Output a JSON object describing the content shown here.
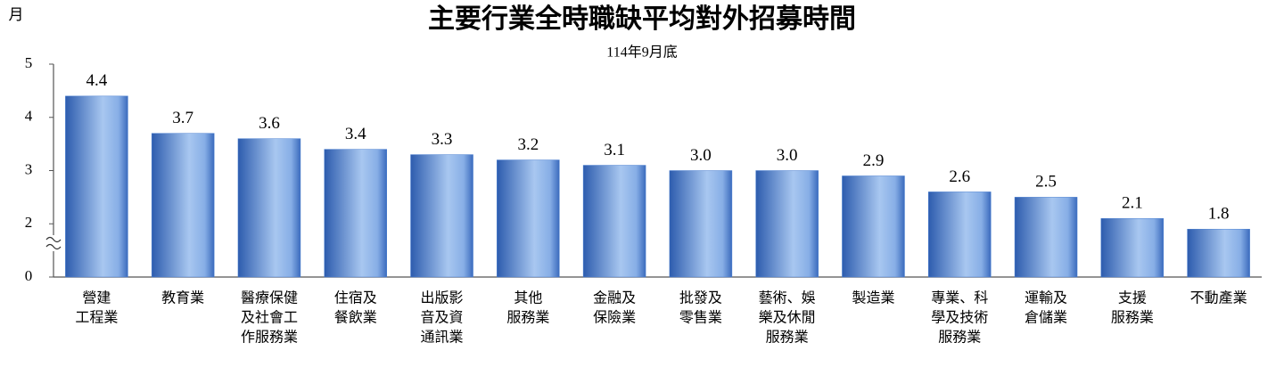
{
  "chart_data": {
    "type": "bar",
    "title": "主要行業全時職缺平均對外招募時間",
    "subtitle": "114年9月底",
    "y_label": "月",
    "categories": [
      [
        "營建",
        "工程業"
      ],
      [
        "教育業"
      ],
      [
        "醫療保健",
        "及社會工",
        "作服務業"
      ],
      [
        "住宿及",
        "餐飲業"
      ],
      [
        "出版影",
        "音及資",
        "通訊業"
      ],
      [
        "其他",
        "服務業"
      ],
      [
        "金融及",
        "保險業"
      ],
      [
        "批發及",
        "零售業"
      ],
      [
        "藝術、娛",
        "樂及休閒",
        "服務業"
      ],
      [
        "製造業"
      ],
      [
        "專業、科",
        "學及技術",
        "服務業"
      ],
      [
        "運輸及",
        "倉儲業"
      ],
      [
        "支援",
        "服務業"
      ],
      [
        "不動產業"
      ]
    ],
    "values": [
      4.4,
      3.7,
      3.6,
      3.4,
      3.3,
      3.2,
      3.1,
      3.0,
      3.0,
      2.9,
      2.6,
      2.5,
      2.1,
      1.8
    ],
    "value_labels": [
      "4.4",
      "3.7",
      "3.6",
      "3.4",
      "3.3",
      "3.2",
      "3.1",
      "3.0",
      "3.0",
      "2.9",
      "2.6",
      "2.5",
      "2.1",
      "1.8"
    ],
    "color": "#4a7fd0",
    "ylim": [
      0,
      5
    ],
    "yticks": [
      0,
      2,
      3,
      4,
      5
    ],
    "axis_break": [
      0,
      2
    ]
  }
}
